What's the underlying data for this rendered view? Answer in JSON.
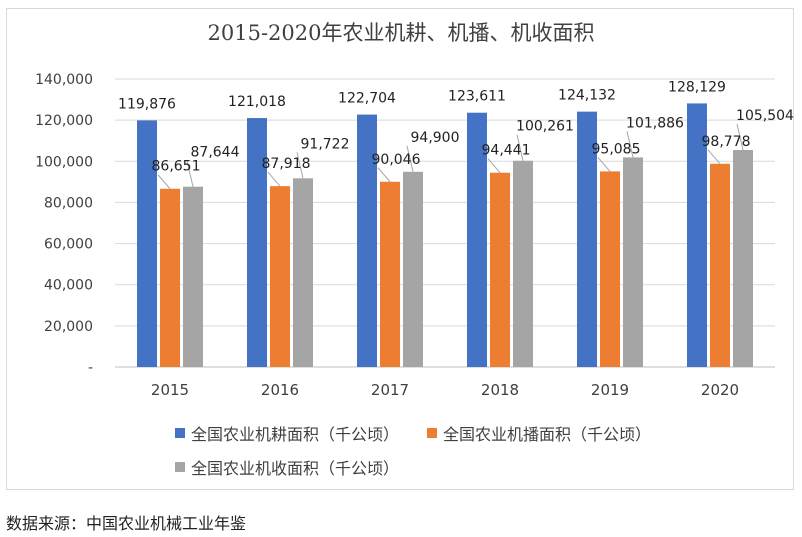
{
  "colors": {
    "blue": "#4472c4",
    "orange": "#ed7d31",
    "gray": "#a5a5a5",
    "grid": "#d9d9d9",
    "text": "#404040"
  },
  "chart_data": {
    "type": "bar",
    "title": "2015-2020年农业机耕、机播、机收面积",
    "categories": [
      "2015",
      "2016",
      "2017",
      "2018",
      "2019",
      "2020"
    ],
    "series": [
      {
        "name": "全国农业机耕面积（千公顷）",
        "values": [
          119876,
          121018,
          122704,
          123611,
          124132,
          128129
        ],
        "labels": [
          "119,876",
          "121,018",
          "122,704",
          "123,611",
          "124,132",
          "128,129"
        ]
      },
      {
        "name": "全国农业机播面积（千公顷）",
        "values": [
          86651,
          87918,
          90046,
          94441,
          95085,
          98778
        ],
        "labels": [
          "86,651",
          "87,918",
          "90,046",
          "94,441",
          "95,085",
          "98,778"
        ]
      },
      {
        "name": "全国农业机收面积（千公顷）",
        "values": [
          87644,
          91722,
          94900,
          100261,
          101886,
          105504
        ],
        "labels": [
          "87,644",
          "91,722",
          "94,900",
          "100,261",
          "101,886",
          "105,504"
        ]
      }
    ],
    "ylim": [
      0,
      140000
    ],
    "yticks": [
      0,
      20000,
      40000,
      60000,
      80000,
      100000,
      120000,
      140000
    ],
    "ytick_labels": [
      "-",
      "20,000",
      "40,000",
      "60,000",
      "80,000",
      "100,000",
      "120,000",
      "140,000"
    ],
    "grid": true,
    "legend": "bottom"
  },
  "source_note": "数据来源：中国农业机械工业年鉴"
}
